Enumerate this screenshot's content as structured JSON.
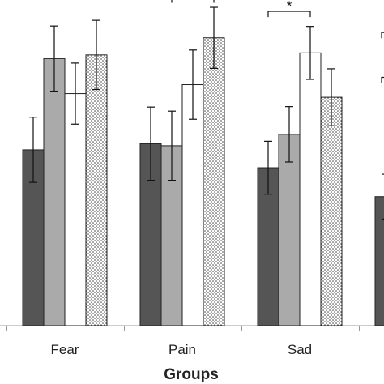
{
  "chart_data": {
    "type": "bar",
    "title": "",
    "xlabel": "Groups",
    "ylabel": "",
    "categories": [
      "Fear",
      "Pain",
      "Sad",
      ""
    ],
    "ylim": [
      0,
      8
    ],
    "grid": false,
    "legend": "none",
    "series": [
      {
        "color": "#555555",
        "pattern": "solid",
        "values": [
          4.32,
          4.47,
          3.88,
          3.17
        ],
        "errors": [
          0.8,
          0.9,
          0.65,
          0.55
        ]
      },
      {
        "color": "#aaaaaa",
        "pattern": "solid",
        "values": [
          6.56,
          4.42,
          4.7,
          null
        ],
        "errors": [
          0.8,
          0.85,
          0.68,
          null
        ]
      },
      {
        "color": "#ffffff",
        "pattern": "solid",
        "values": [
          5.7,
          5.92,
          6.7,
          null
        ],
        "errors": [
          0.75,
          0.85,
          0.65,
          null
        ]
      },
      {
        "color": "#ffffff",
        "pattern": "dotted",
        "values": [
          6.65,
          7.07,
          5.61,
          null
        ],
        "errors": [
          0.85,
          0.75,
          0.7,
          null
        ]
      }
    ],
    "significance": [
      {
        "label": "*",
        "category": 1,
        "from_series": 0,
        "to_series": 3,
        "level": 8.58
      },
      {
        "label": "*",
        "category": 1,
        "from_series": 1,
        "to_series": 3,
        "level": 8.07
      },
      {
        "label": "*",
        "category": 2,
        "from_series": 0,
        "to_series": 2,
        "level": 7.72
      }
    ]
  }
}
